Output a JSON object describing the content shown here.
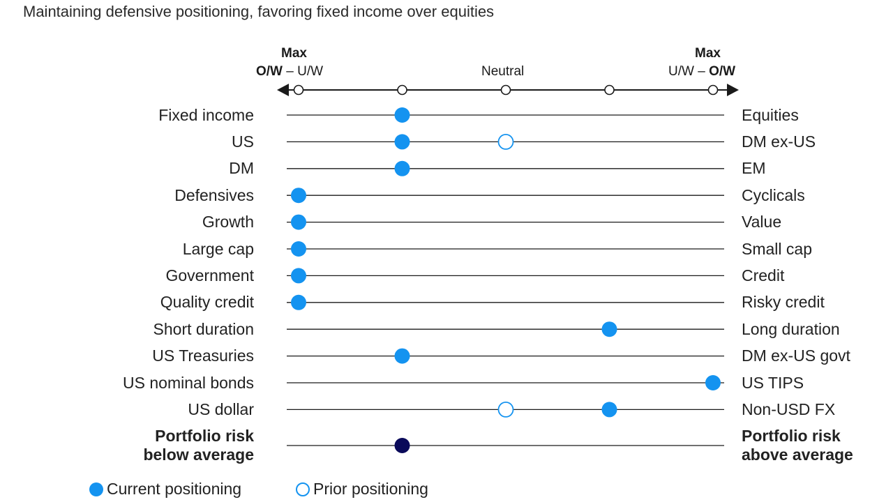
{
  "title": "Maintaining defensive positioning, favoring fixed income over equities",
  "scale_header": {
    "left_top": "Max",
    "left_bottom_bold": "O/W",
    "left_bottom_rest": " – U/W",
    "neutral": "Neutral",
    "right_top": "Max",
    "right_bottom_rest": "U/W – ",
    "right_bottom_bold": "O/W"
  },
  "legend": {
    "current": "Current positioning",
    "prior": "Prior positioning"
  },
  "colors": {
    "current": "#1493f0",
    "portfolio": "#0a0a5a",
    "line": "#1a1a1a"
  },
  "chart_data": {
    "type": "scatter",
    "scale_positions": [
      0,
      1,
      2,
      3,
      4
    ],
    "scale_note": "0 = Max overweight left item, 2 = Neutral, 4 = Max overweight right item",
    "rows": [
      {
        "left": "Fixed income",
        "right": "Equities",
        "current": 1,
        "prior": null,
        "bold": false
      },
      {
        "left": "US",
        "right": "DM ex-US",
        "current": 1,
        "prior": 2,
        "bold": false
      },
      {
        "left": "DM",
        "right": "EM",
        "current": 1,
        "prior": null,
        "bold": false
      },
      {
        "left": "Defensives",
        "right": "Cyclicals",
        "current": 0,
        "prior": null,
        "bold": false
      },
      {
        "left": "Growth",
        "right": "Value",
        "current": 0,
        "prior": null,
        "bold": false
      },
      {
        "left": "Large cap",
        "right": "Small cap",
        "current": 0,
        "prior": null,
        "bold": false
      },
      {
        "left": "Government",
        "right": "Credit",
        "current": 0,
        "prior": null,
        "bold": false
      },
      {
        "left": "Quality credit",
        "right": "Risky credit",
        "current": 0,
        "prior": null,
        "bold": false
      },
      {
        "left": "Short duration",
        "right": "Long duration",
        "current": 3,
        "prior": null,
        "bold": false
      },
      {
        "left": "US Treasuries",
        "right": "DM ex-US govt",
        "current": 1,
        "prior": null,
        "bold": false
      },
      {
        "left": "US nominal bonds",
        "right": "US TIPS",
        "current": 4,
        "prior": null,
        "bold": false
      },
      {
        "left": "US dollar",
        "right": "Non-USD FX",
        "current": 3,
        "prior": 2,
        "bold": false
      },
      {
        "left": "Portfolio risk\nbelow average",
        "right": "Portfolio risk\nabove average",
        "current": 1,
        "prior": null,
        "bold": true
      }
    ]
  }
}
